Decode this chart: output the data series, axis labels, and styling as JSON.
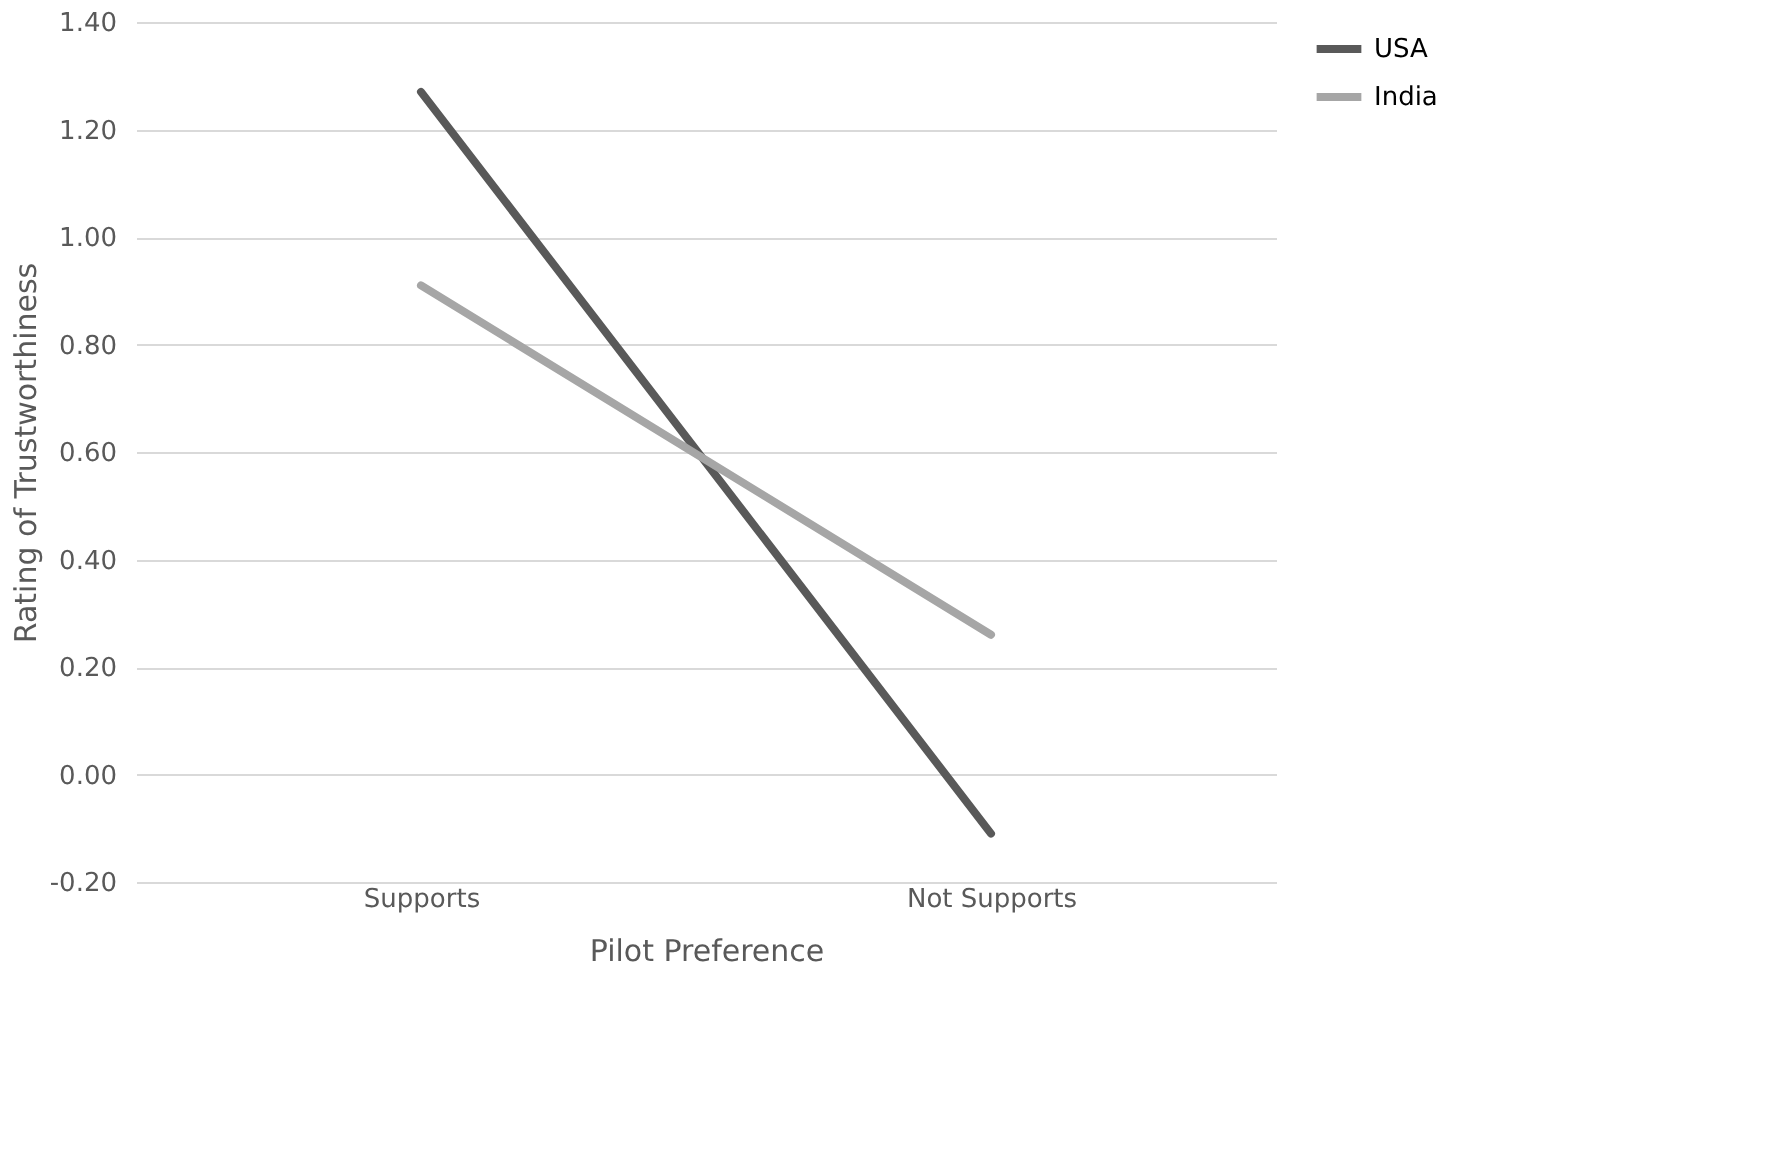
{
  "chart_data": {
    "type": "line",
    "xlabel": "Pilot Preference",
    "ylabel": "Rating of Trustworthiness",
    "categories": [
      "Supports",
      "Not Supports"
    ],
    "series": [
      {
        "name": "USA",
        "color": "#595959",
        "values": [
          1.27,
          -0.11
        ]
      },
      {
        "name": "India",
        "color": "#a6a6a6",
        "values": [
          0.91,
          0.26
        ]
      }
    ],
    "ylim": [
      -0.2,
      1.4
    ],
    "yticks": [
      {
        "value": -0.2,
        "label": "-0.20"
      },
      {
        "value": 0,
        "label": "0.00"
      },
      {
        "value": 0.2,
        "label": "0.20"
      },
      {
        "value": 0.4,
        "label": "0.40"
      },
      {
        "value": 0.6,
        "label": "0.60"
      },
      {
        "value": 0.8,
        "label": "0.80"
      },
      {
        "value": 1.0,
        "label": "1.00"
      },
      {
        "value": 1.2,
        "label": "1.20"
      },
      {
        "value": 1.4,
        "label": "1.40"
      }
    ],
    "grid": "y",
    "legend": "right",
    "marker": "none",
    "line_style": "solid"
  }
}
